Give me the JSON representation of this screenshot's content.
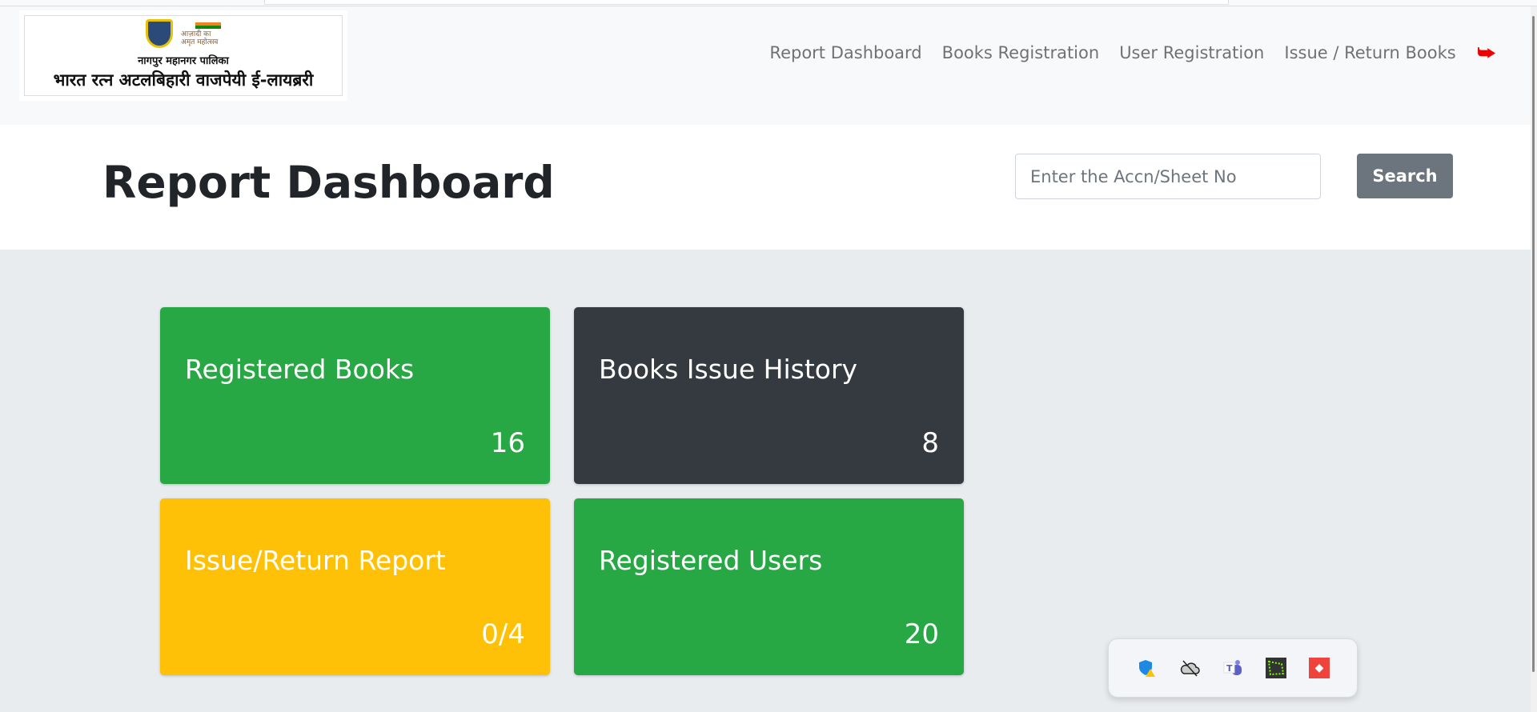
{
  "logo": {
    "emblem_text": "आज़ादी का अमृत महोत्सव",
    "line1": "नागपुर महानगर पालिका",
    "line2": "भारत रत्न अटलबिहारी वाजपेयी ई-लायब्ररी"
  },
  "nav": {
    "links": [
      "Report Dashboard",
      "Books Registration",
      "User Registration",
      "Issue / Return Books"
    ],
    "logout_icon": "sign-out-icon"
  },
  "header": {
    "title": "Report Dashboard",
    "search_placeholder": "Enter the Accn/Sheet No",
    "search_label": "Search"
  },
  "cards": [
    {
      "title": "Registered Books",
      "value": "16",
      "color": "#28a745"
    },
    {
      "title": "Books Issue History",
      "value": "8",
      "color": "#343a40"
    },
    {
      "title": "Issue/Return Report",
      "value": "0/4",
      "color": "#ffc107"
    },
    {
      "title": "Registered Users",
      "value": "20",
      "color": "#28a745"
    }
  ],
  "tray": {
    "icons": [
      "defender-warning-icon",
      "onedrive-off-icon",
      "teams-icon",
      "green-app-icon",
      "anydesk-icon"
    ]
  }
}
